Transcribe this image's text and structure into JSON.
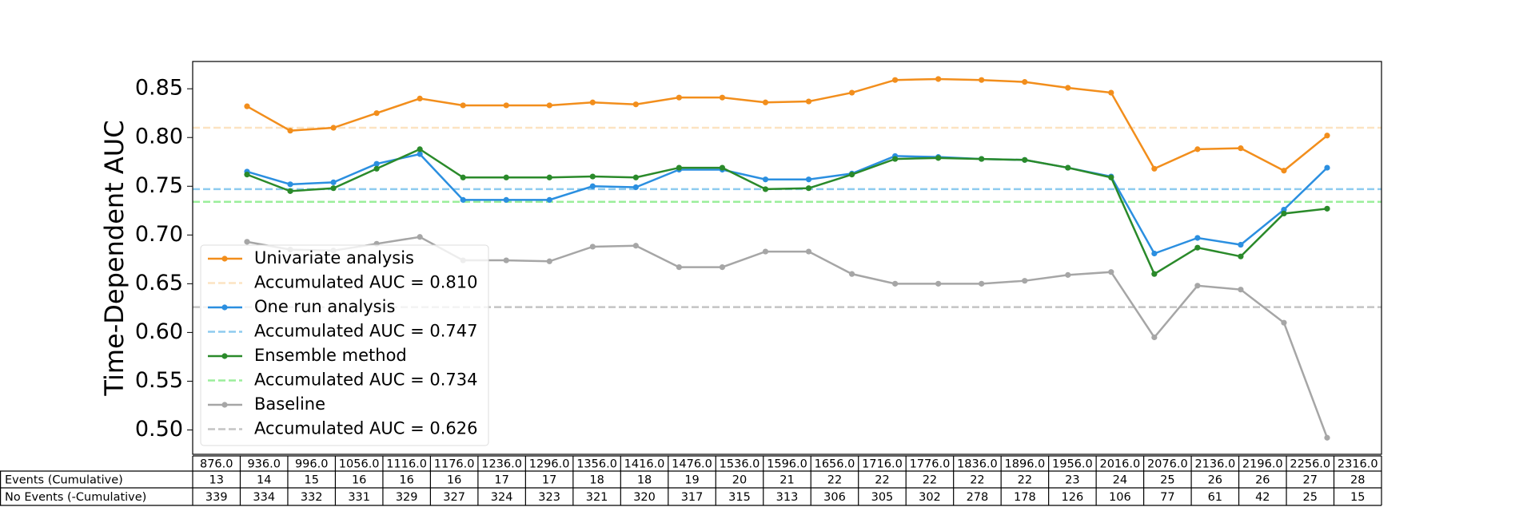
{
  "chart_data": {
    "type": "line",
    "ylabel": "Time-Dependent AUC",
    "ylim": [
      0.475,
      0.878
    ],
    "yticks": [
      {
        "value": 0.5,
        "label": "0.50"
      },
      0.55,
      {
        "value": 0.6,
        "label": "0.60"
      },
      0.65,
      {
        "value": 0.7,
        "label": "0.70"
      },
      0.75,
      {
        "value": 0.8,
        "label": "0.80"
      },
      0.85
    ],
    "series": [
      {
        "name": "Univariate analysis",
        "color": "#f28e1c",
        "values": [
          0.832,
          0.807,
          0.81,
          0.825,
          0.84,
          0.833,
          0.833,
          0.833,
          0.836,
          0.834,
          0.841,
          0.841,
          0.836,
          0.837,
          0.846,
          0.859,
          0.86,
          0.859,
          0.857,
          0.851,
          0.846,
          0.768,
          0.788,
          0.789,
          0.766,
          0.802
        ],
        "reference": {
          "label": "Accumulated AUC = 0.810",
          "value": 0.81,
          "color": "#fce3c2"
        }
      },
      {
        "name": "One run analysis",
        "color": "#2b8fe0",
        "values": [
          0.765,
          0.752,
          0.754,
          0.773,
          0.783,
          0.736,
          0.736,
          0.736,
          0.75,
          0.749,
          0.767,
          0.767,
          0.757,
          0.757,
          0.763,
          0.781,
          0.78,
          0.778,
          0.777,
          0.769,
          0.76,
          0.681,
          0.697,
          0.69,
          0.726,
          0.769
        ],
        "reference": {
          "label": "Accumulated AUC = 0.747",
          "value": 0.747,
          "color": "#8ecbef"
        }
      },
      {
        "name": "Ensemble method",
        "color": "#2a8a2a",
        "values": [
          0.762,
          0.745,
          0.748,
          0.768,
          0.788,
          0.759,
          0.759,
          0.759,
          0.76,
          0.759,
          0.769,
          0.769,
          0.747,
          0.748,
          0.762,
          0.778,
          0.779,
          0.778,
          0.777,
          0.769,
          0.759,
          0.66,
          0.687,
          0.678,
          0.722,
          0.727
        ],
        "reference": {
          "label": "Accumulated AUC = 0.734",
          "value": 0.734,
          "color": "#9bee9b"
        }
      },
      {
        "name": "Baseline",
        "color": "#a6a6a6",
        "values": [
          0.693,
          0.685,
          0.684,
          0.691,
          0.698,
          0.674,
          0.674,
          0.673,
          0.688,
          0.689,
          0.667,
          0.667,
          0.683,
          0.683,
          0.66,
          0.65,
          0.65,
          0.65,
          0.653,
          0.659,
          0.662,
          0.595,
          0.648,
          0.644,
          0.61,
          0.492
        ],
        "reference": {
          "label": "Accumulated AUC = 0.626",
          "value": 0.626,
          "color": "#c4c4c4"
        }
      }
    ]
  },
  "table": {
    "columns": [
      "876.0",
      "936.0",
      "996.0",
      "1056.0",
      "1116.0",
      "1176.0",
      "1236.0",
      "1296.0",
      "1356.0",
      "1416.0",
      "1476.0",
      "1536.0",
      "1596.0",
      "1656.0",
      "1716.0",
      "1776.0",
      "1836.0",
      "1896.0",
      "1956.0",
      "2016.0",
      "2076.0",
      "2136.0",
      "2196.0",
      "2256.0",
      "2316.0"
    ],
    "rows": [
      {
        "label": "Events (Cumulative)",
        "values": [
          13,
          14,
          15,
          16,
          16,
          16,
          17,
          17,
          18,
          18,
          19,
          20,
          21,
          22,
          22,
          22,
          22,
          22,
          23,
          24,
          25,
          26,
          26,
          27,
          28
        ]
      },
      {
        "label": "No Events (-Cumulative)",
        "values": [
          339,
          334,
          332,
          331,
          329,
          327,
          324,
          323,
          321,
          320,
          317,
          315,
          313,
          306,
          305,
          302,
          278,
          178,
          126,
          106,
          77,
          61,
          42,
          25,
          15
        ]
      }
    ]
  }
}
